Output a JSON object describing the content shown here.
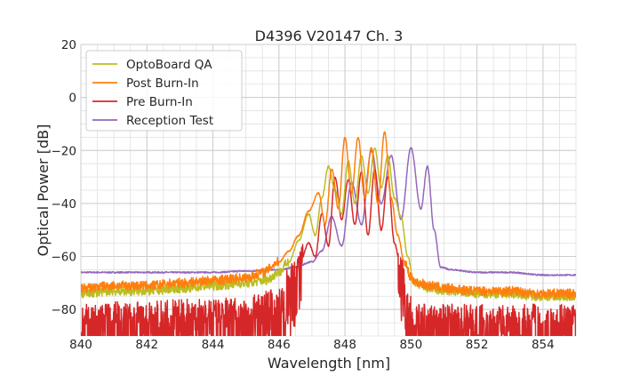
{
  "chart_data": {
    "type": "line",
    "title": "D4396 V20147 Ch. 3",
    "xlabel": "Wavelength [nm]",
    "ylabel": "Optical Power [dB]",
    "xlim": [
      840,
      855
    ],
    "ylim": [
      -90,
      20
    ],
    "xticks": [
      840,
      842,
      844,
      846,
      848,
      850,
      852,
      854
    ],
    "xtick_labels": [
      "840",
      "842",
      "844",
      "846",
      "848",
      "850",
      "852",
      "854"
    ],
    "yticks": [
      20,
      0,
      -20,
      -40,
      -60,
      -80
    ],
    "ytick_labels": [
      "20",
      "0",
      "−20",
      "−40",
      "−60",
      "−80"
    ],
    "grid": true,
    "legend_position": "top-left",
    "series": [
      {
        "name": "OptoBoard QA",
        "color": "#bcbd22",
        "x": [
          840,
          841,
          842,
          843,
          844,
          845,
          845.6,
          846,
          846.3,
          846.6,
          846.9,
          847.1,
          847.3,
          847.5,
          847.7,
          847.9,
          848.1,
          848.3,
          848.5,
          848.7,
          848.9,
          849.1,
          849.3,
          849.5,
          849.7,
          849.9,
          850.1,
          850.5,
          851,
          852,
          853,
          854,
          855
        ],
        "y": [
          -74,
          -73,
          -73,
          -72,
          -71,
          -70,
          -69,
          -66,
          -62,
          -54,
          -44,
          -52,
          -38,
          -26,
          -35,
          -44,
          -24,
          -40,
          -22,
          -36,
          -19,
          -34,
          -22,
          -38,
          -45,
          -60,
          -70,
          -72,
          -73,
          -74,
          -74,
          -75,
          -75
        ]
      },
      {
        "name": "Post Burn-In",
        "color": "#ff7f0e",
        "x": [
          840,
          841,
          842,
          843,
          844,
          845,
          845.5,
          846,
          846.3,
          846.6,
          846.9,
          847.2,
          847.4,
          847.6,
          847.8,
          848.0,
          848.2,
          848.4,
          848.6,
          848.8,
          849.0,
          849.2,
          849.4,
          849.6,
          849.8,
          850.0,
          850.2,
          850.6,
          851,
          852,
          853,
          854,
          855
        ],
        "y": [
          -72,
          -71,
          -71,
          -70,
          -69,
          -68,
          -66,
          -62,
          -58,
          -52,
          -43,
          -36,
          -48,
          -27,
          -42,
          -15,
          -36,
          -15,
          -38,
          -19,
          -40,
          -13,
          -38,
          -52,
          -62,
          -68,
          -70,
          -71,
          -72,
          -73,
          -73,
          -74,
          -74
        ]
      },
      {
        "name": "Pre Burn-In",
        "color": "#d62728",
        "x": [
          840,
          841,
          842,
          843,
          844,
          845,
          846,
          846.3,
          846.6,
          846.9,
          847.1,
          847.3,
          847.5,
          847.7,
          847.9,
          848.1,
          848.3,
          848.5,
          848.7,
          848.9,
          849.1,
          849.3,
          849.5,
          849.7,
          849.9,
          850.1,
          851,
          852,
          853,
          854,
          855
        ],
        "y": [
          -86,
          -85,
          -85,
          -84,
          -84,
          -83,
          -80,
          -72,
          -64,
          -55,
          -60,
          -44,
          -56,
          -30,
          -46,
          -31,
          -48,
          -28,
          -52,
          -27,
          -50,
          -30,
          -55,
          -65,
          -80,
          -86,
          -86,
          -86,
          -86,
          -86,
          -86
        ]
      },
      {
        "name": "Reception Test",
        "color": "#9467bd",
        "x": [
          840,
          841,
          842,
          843,
          844,
          845,
          846,
          846.5,
          847,
          847.3,
          847.6,
          847.9,
          848.2,
          848.5,
          848.8,
          849.1,
          849.4,
          849.7,
          850.0,
          850.3,
          850.5,
          850.7,
          850.9,
          851.2,
          852,
          853,
          854,
          855
        ],
        "y": [
          -66,
          -66,
          -66,
          -66,
          -66,
          -65.5,
          -65,
          -64,
          -62,
          -58,
          -45,
          -56,
          -32,
          -48,
          -20,
          -40,
          -22,
          -46,
          -19,
          -42,
          -26,
          -50,
          -64,
          -65,
          -66,
          -66,
          -67,
          -67
        ]
      }
    ]
  }
}
